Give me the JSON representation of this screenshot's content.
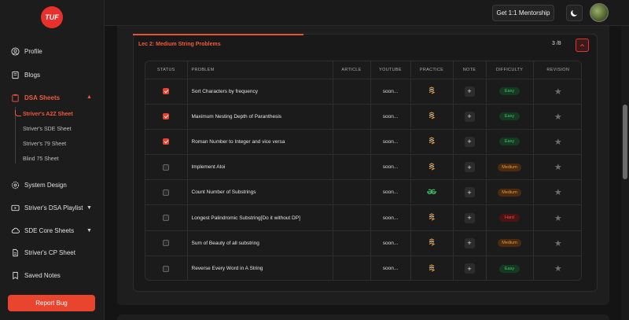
{
  "brand": {
    "logo_text": "TUF"
  },
  "sidebar": {
    "items": [
      {
        "label": "Profile",
        "icon": "user-icon"
      },
      {
        "label": "Blogs",
        "icon": "book-icon"
      },
      {
        "label": "DSA Sheets",
        "icon": "clipboard-icon"
      },
      {
        "label": "System Design",
        "icon": "gear-icon"
      },
      {
        "label": "Striver's DSA Playlist",
        "icon": "play-icon"
      },
      {
        "label": "SDE Core Sheets",
        "icon": "cloud-icon"
      },
      {
        "label": "Striver's CP Sheet",
        "icon": "file-icon"
      },
      {
        "label": "Saved Notes",
        "icon": "bookmark-icon"
      }
    ],
    "sub_items": [
      {
        "label": "Striver's A2Z Sheet"
      },
      {
        "label": "Striver's SDE Sheet"
      },
      {
        "label": "Striver's 79 Sheet"
      },
      {
        "label": "Blind 75 Sheet"
      }
    ],
    "report_bug": "Report Bug"
  },
  "topbar": {
    "mentorship": "Get 1:1 Mentorship"
  },
  "lecture": {
    "title": "Lec 2: Medium String Problems",
    "count": "3 /8"
  },
  "table": {
    "headers": [
      "STATUS",
      "PROBLEM",
      "ARTICLE",
      "YOUTUBE",
      "PRACTICE",
      "NOTE",
      "DIFFICULTY",
      "REVISION"
    ],
    "rows": [
      {
        "done": true,
        "problem": "Sort Characters by frequency",
        "youtube": "soon...",
        "practice": "codestudio-icon",
        "difficulty": "Easy"
      },
      {
        "done": true,
        "problem": "Maximum Nesting Depth of Paranthesis",
        "youtube": "soon...",
        "practice": "codestudio-icon",
        "difficulty": "Easy"
      },
      {
        "done": true,
        "problem": "Roman Number to Integer and vice versa",
        "youtube": "soon...",
        "practice": "codestudio-icon",
        "difficulty": "Easy"
      },
      {
        "done": false,
        "problem": "Implement Atoi",
        "youtube": "soon...",
        "practice": "codestudio-icon",
        "difficulty": "Medium"
      },
      {
        "done": false,
        "problem": "Count Number of Substrings",
        "youtube": "soon...",
        "practice": "geeksforgeeks-icon",
        "difficulty": "Medium"
      },
      {
        "done": false,
        "problem": "Longest Palindromic Substring[Do it without DP]",
        "youtube": "soon...",
        "practice": "codestudio-icon",
        "difficulty": "Hard"
      },
      {
        "done": false,
        "problem": "Sum of Beauty of all substring",
        "youtube": "soon...",
        "practice": "codestudio-icon",
        "difficulty": "Medium"
      },
      {
        "done": false,
        "problem": "Reverse Every Word in A String",
        "youtube": "soon...",
        "practice": "codestudio-icon",
        "difficulty": "Easy"
      }
    ]
  },
  "colors": {
    "accent": "#e8412e",
    "easy": "#3fc26a",
    "medium": "#f0962e",
    "hard": "#ef4a4a"
  }
}
